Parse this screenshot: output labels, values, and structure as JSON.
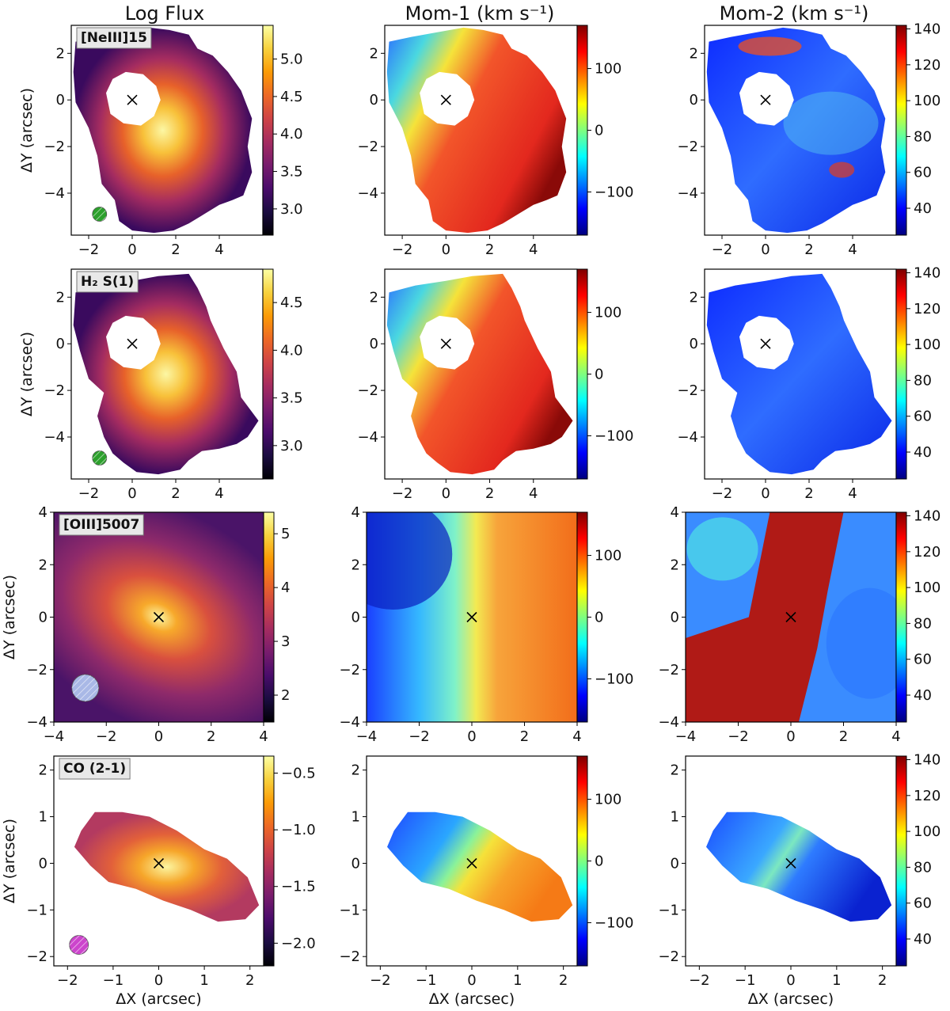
{
  "chart_data": {
    "type": "heatmap",
    "column_titles": [
      "Log Flux",
      "Mom-1 (km s⁻¹)",
      "Mom-2 (km s⁻¹)"
    ],
    "xlabel": "ΔX (arcsec)",
    "ylabel": "ΔY (arcsec)",
    "rows": [
      {
        "line": "[NeIII]15",
        "xlim": [
          -2.8,
          6.0
        ],
        "ylim": [
          -5.8,
          3.2
        ],
        "xticks": [
          -2,
          0,
          2,
          4
        ],
        "yticks": [
          -4,
          -2,
          0,
          2
        ],
        "flux_cbar": {
          "range": [
            2.65,
            5.45
          ],
          "ticks": [
            3.0,
            3.5,
            4.0,
            4.5,
            5.0
          ]
        },
        "beam": {
          "x": -1.5,
          "y": -4.9,
          "color": "#2ca02c"
        }
      },
      {
        "line": "H₂ S(1)",
        "xlim": [
          -2.8,
          6.0
        ],
        "ylim": [
          -5.8,
          3.2
        ],
        "xticks": [
          -2,
          0,
          2,
          4
        ],
        "yticks": [
          -4,
          -2,
          0,
          2
        ],
        "flux_cbar": {
          "range": [
            2.65,
            4.85
          ],
          "ticks": [
            3.0,
            3.5,
            4.0,
            4.5
          ]
        },
        "beam": {
          "x": -1.5,
          "y": -4.9,
          "color": "#2ca02c"
        }
      },
      {
        "line": "[OIII]5007",
        "xlim": [
          -4,
          4
        ],
        "ylim": [
          -4,
          4
        ],
        "xticks": [
          -4,
          -2,
          0,
          2,
          4
        ],
        "yticks": [
          -4,
          -2,
          0,
          2,
          4
        ],
        "flux_cbar": {
          "range": [
            1.5,
            5.4
          ],
          "ticks": [
            2,
            3,
            4,
            5
          ]
        },
        "beam": {
          "x": -2.8,
          "y": -2.7,
          "color": "#a9b8e6"
        }
      },
      {
        "line": "CO (2-1)",
        "xlim": [
          -2.3,
          2.3
        ],
        "ylim": [
          -2.2,
          2.3
        ],
        "xticks": [
          -2,
          -1,
          0,
          1,
          2
        ],
        "yticks": [
          -2,
          -1,
          0,
          1,
          2
        ],
        "flux_cbar": {
          "range": [
            -2.2,
            -0.35
          ],
          "ticks": [
            -2.0,
            -1.5,
            -1.0,
            -0.5
          ]
        },
        "beam": {
          "x": -1.75,
          "y": -1.75,
          "color": "#cc44cc"
        }
      }
    ],
    "mom1_cbar": {
      "range": [
        -170,
        170
      ],
      "ticks": [
        -100,
        0,
        100
      ]
    },
    "mom2_cbar": {
      "range": [
        25,
        142
      ],
      "ticks": [
        40,
        60,
        80,
        100,
        120,
        140
      ]
    },
    "nucleus_marker": "× at (0, 0)"
  }
}
